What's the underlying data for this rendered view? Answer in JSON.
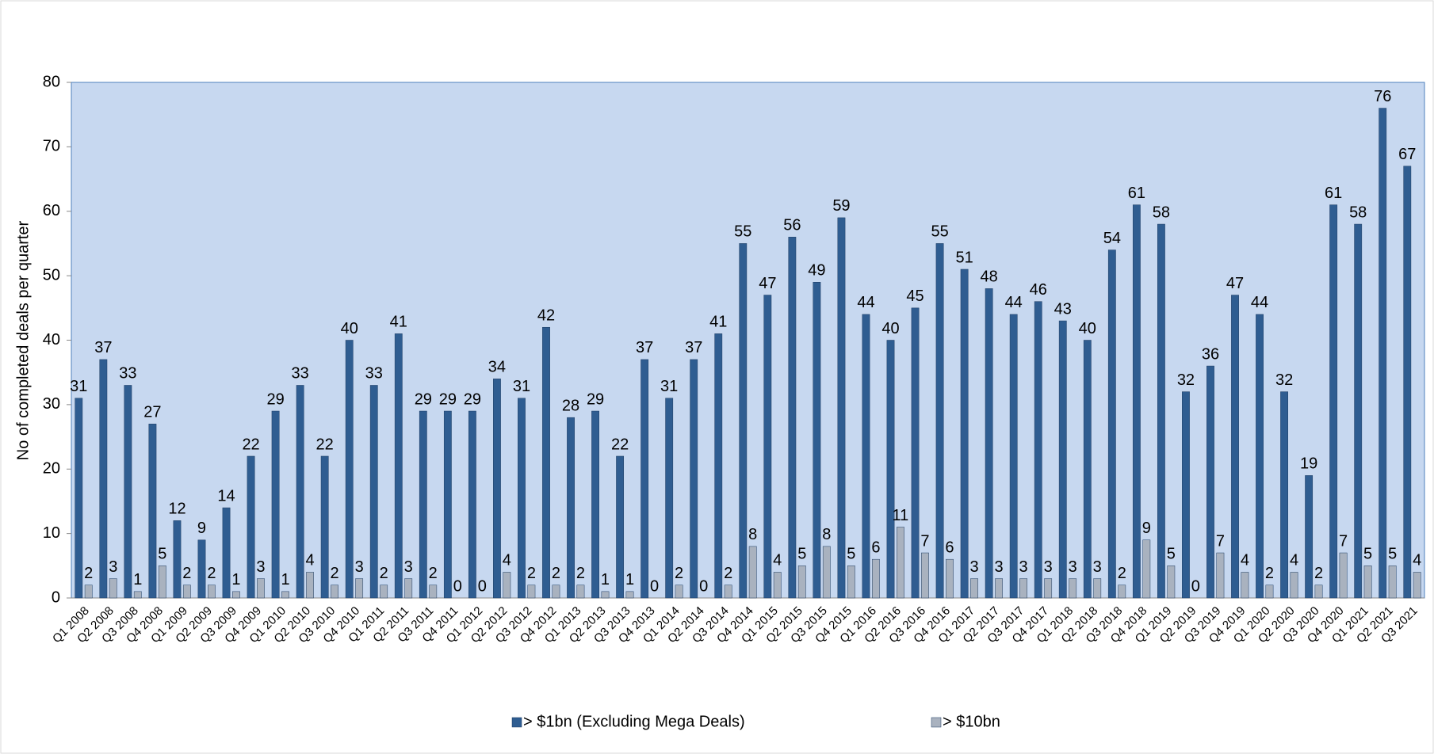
{
  "chart_data": {
    "type": "bar",
    "y_label": "No of completed deals per quarter",
    "categories": [
      "Q1 2008",
      "Q2 2008",
      "Q3 2008",
      "Q4 2008",
      "Q1 2009",
      "Q2 2009",
      "Q3 2009",
      "Q4 2009",
      "Q1 2010",
      "Q2 2010",
      "Q3 2010",
      "Q4 2010",
      "Q1 2011",
      "Q2 2011",
      "Q3 2011",
      "Q4 2011",
      "Q1 2012",
      "Q2 2012",
      "Q3 2012",
      "Q4 2012",
      "Q1 2013",
      "Q2 2013",
      "Q3 2013",
      "Q4 2013",
      "Q1 2014",
      "Q2 2014",
      "Q3 2014",
      "Q4 2014",
      "Q1 2015",
      "Q2 2015",
      "Q3 2015",
      "Q4 2015",
      "Q1 2016",
      "Q2 2016",
      "Q3 2016",
      "Q4 2016",
      "Q1 2017",
      "Q2 2017",
      "Q3 2017",
      "Q4 2017",
      "Q1 2018",
      "Q2 2018",
      "Q3 2018",
      "Q4 2018",
      "Q1 2019",
      "Q2 2019",
      "Q3 2019",
      "Q4 2019",
      "Q1 2020",
      "Q2 2020",
      "Q3 2020",
      "Q4 2020",
      "Q1 2021",
      "Q2 2021",
      "Q3 2021"
    ],
    "series": [
      {
        "name": "> $1bn (Excluding Mega Deals)",
        "color": "#2f5d91",
        "values": [
          31,
          37,
          33,
          27,
          12,
          9,
          14,
          22,
          29,
          33,
          22,
          40,
          33,
          41,
          29,
          29,
          29,
          34,
          31,
          42,
          28,
          29,
          22,
          37,
          31,
          37,
          41,
          55,
          47,
          56,
          49,
          59,
          44,
          40,
          45,
          55,
          51,
          48,
          44,
          46,
          43,
          40,
          54,
          61,
          58,
          32,
          36,
          47,
          44,
          32,
          19,
          61,
          58,
          76,
          67
        ]
      },
      {
        "name": "> $10bn",
        "color": "#a9b2bf",
        "values": [
          2,
          3,
          1,
          5,
          2,
          2,
          1,
          3,
          1,
          4,
          2,
          3,
          2,
          3,
          2,
          0,
          0,
          4,
          2,
          2,
          2,
          1,
          1,
          0,
          2,
          0,
          2,
          8,
          4,
          5,
          8,
          5,
          6,
          11,
          7,
          6,
          3,
          3,
          3,
          3,
          3,
          3,
          2,
          9,
          5,
          0,
          7,
          4,
          2,
          4,
          2,
          7,
          5,
          5,
          4
        ]
      }
    ],
    "ylim": [
      0,
      80
    ],
    "yticks": [
      0,
      10,
      20,
      30,
      40,
      50,
      60,
      70,
      80
    ],
    "plot_background": "#c7d8f0",
    "legend": "bottom"
  }
}
